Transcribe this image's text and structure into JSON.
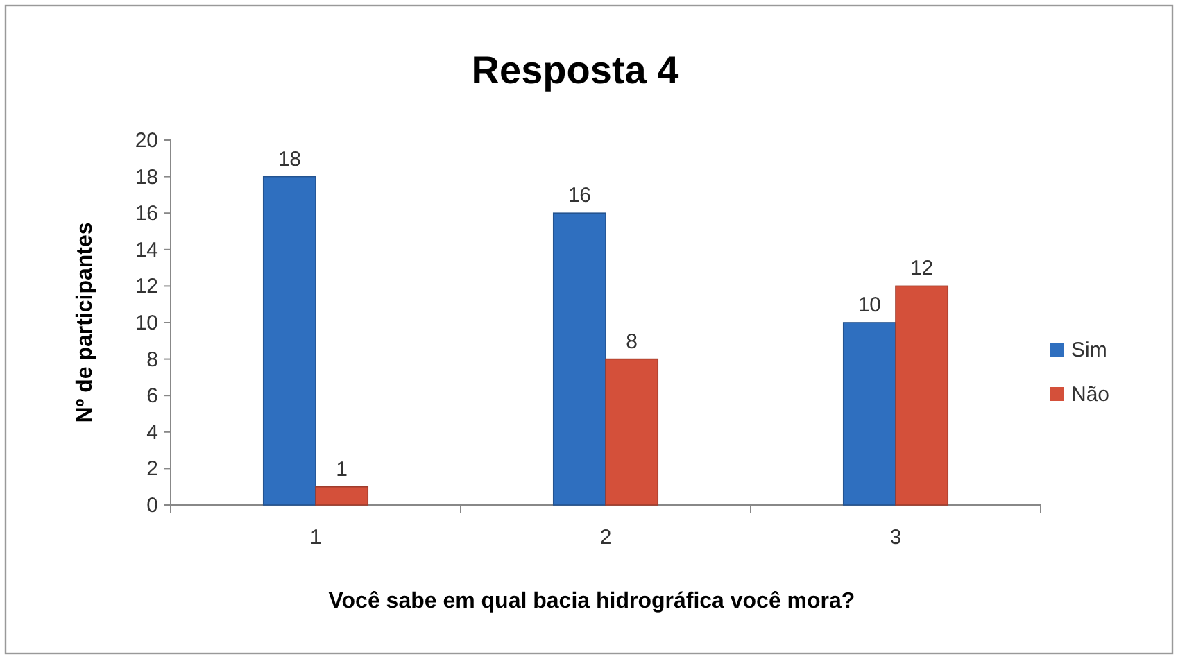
{
  "chart_data": {
    "type": "bar",
    "title": "Resposta 4",
    "xlabel": "Você  sabe em qual bacia hidrográfica você mora?",
    "ylabel": "Nº de participantes",
    "categories": [
      "1",
      "2",
      "3"
    ],
    "series": [
      {
        "name": "Sim",
        "color": "#2f6fbf",
        "values": [
          18,
          16,
          10
        ]
      },
      {
        "name": "Não",
        "color": "#d4503a",
        "values": [
          1,
          8,
          12
        ]
      }
    ],
    "ylim": [
      0,
      20
    ],
    "yticks": [
      0,
      2,
      4,
      6,
      8,
      10,
      12,
      14,
      16,
      18,
      20
    ],
    "data_labels": true,
    "legend": "right",
    "grid": false
  }
}
